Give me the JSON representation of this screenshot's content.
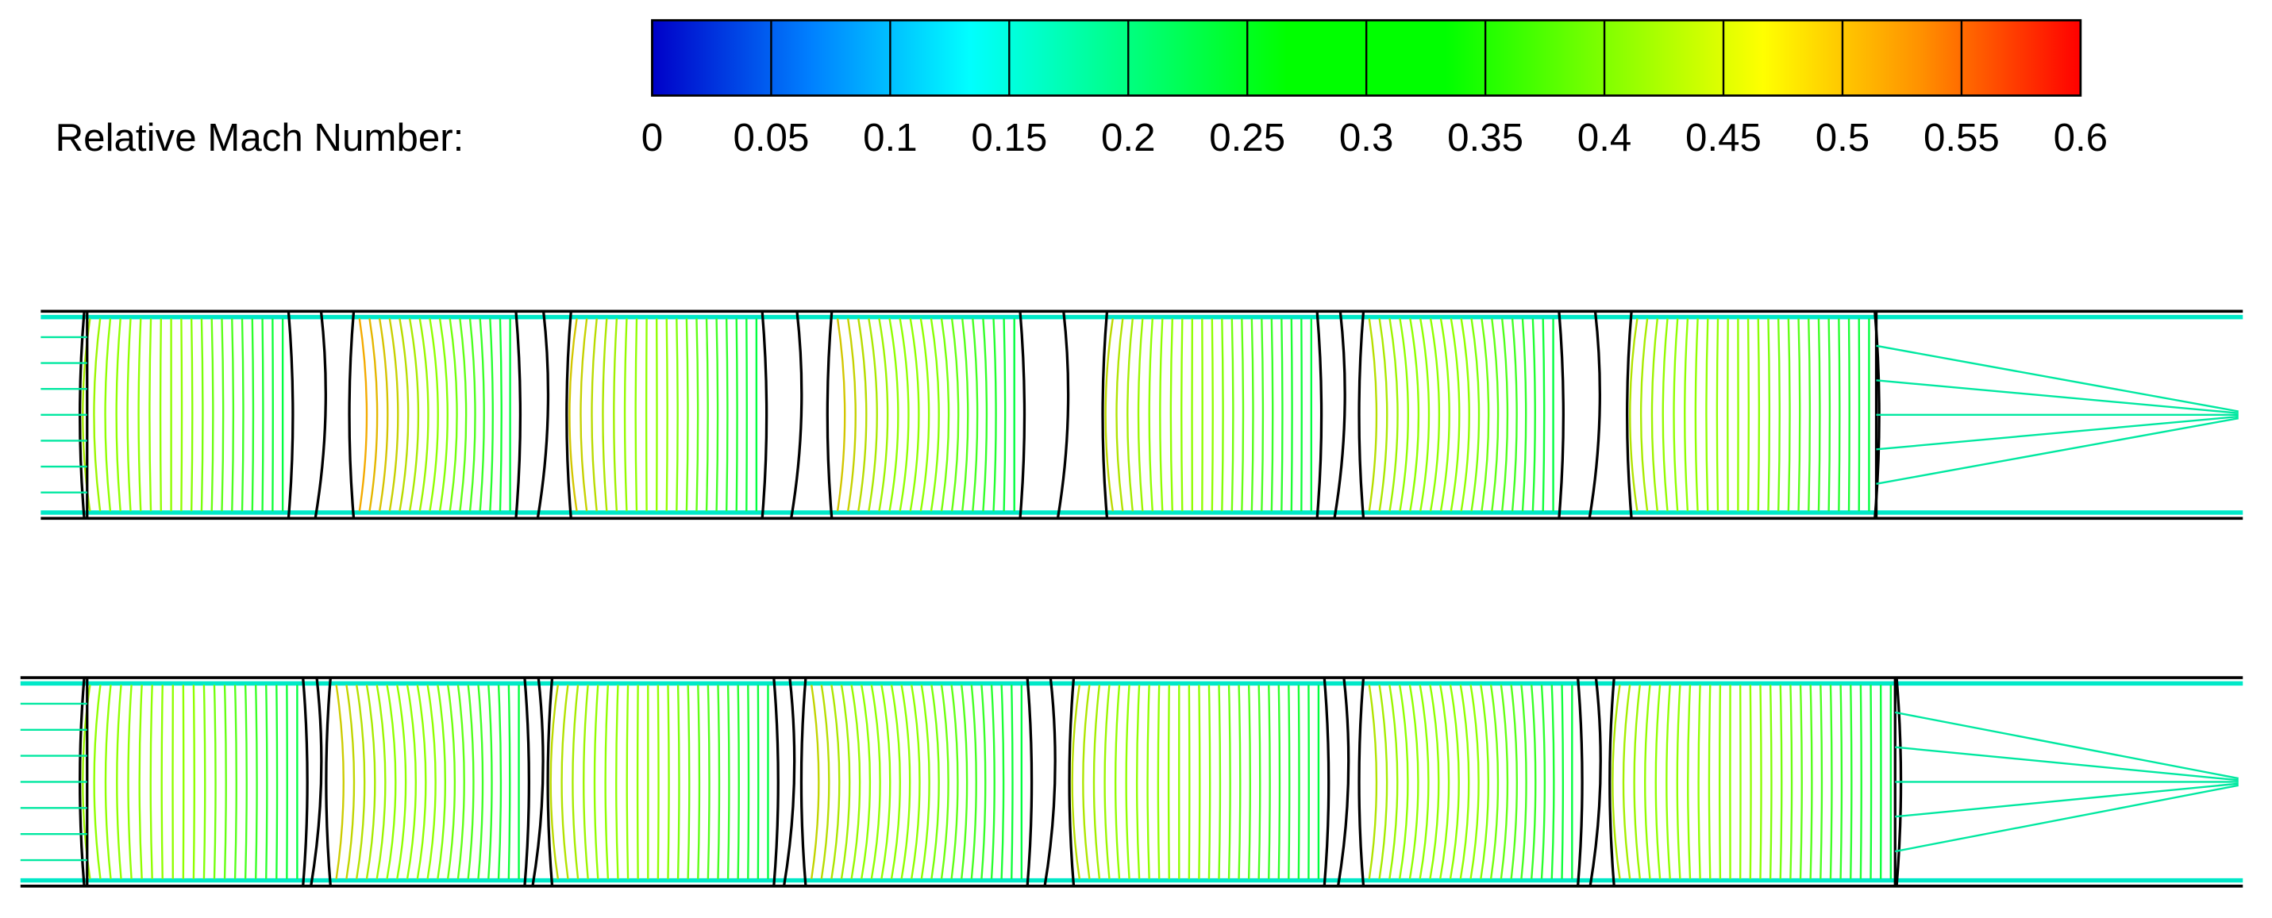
{
  "chart_data": {
    "type": "colorbar",
    "title": "Relative Mach Number:",
    "lim": [
      0,
      0.6
    ],
    "ticks": [
      0,
      0.05,
      0.1,
      0.15,
      0.2,
      0.25,
      0.3,
      0.35,
      0.4,
      0.45,
      0.5,
      0.55,
      0.6
    ],
    "colormap": [
      "#0000c8",
      "#0080ff",
      "#00ffff",
      "#00ff80",
      "#00ff00",
      "#00ff00",
      "#80ff00",
      "#ffff00",
      "#ff9000",
      "#ff0000"
    ]
  }
}
